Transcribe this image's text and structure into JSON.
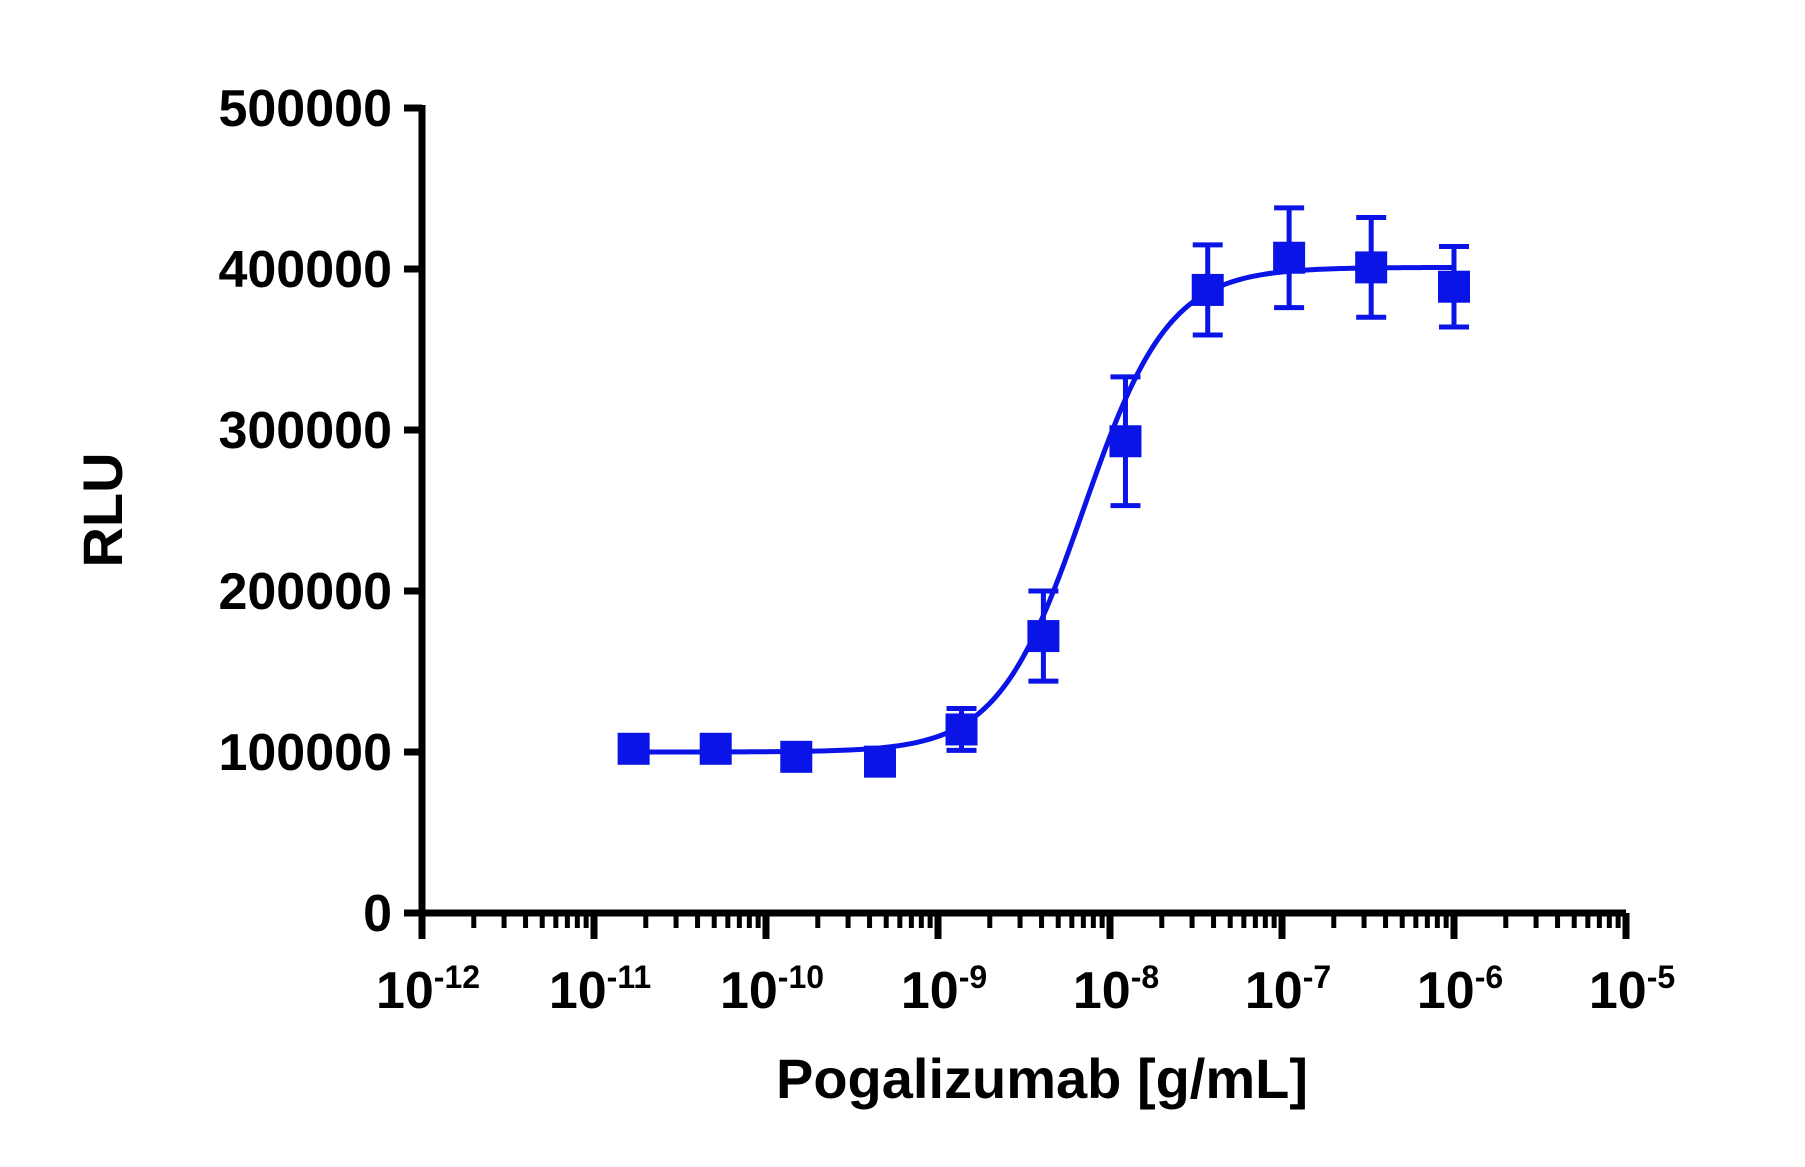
{
  "chart_data": {
    "type": "scatter",
    "xlabel": "Pogalizumab [g/mL]",
    "ylabel": "RLU",
    "x_scale": "log10",
    "xlim": [
      1e-12,
      1e-05
    ],
    "ylim": [
      0,
      500000
    ],
    "x_ticks": [
      {
        "base": "10",
        "exp": "-12",
        "value": 1e-12
      },
      {
        "base": "10",
        "exp": "-11",
        "value": 1e-11
      },
      {
        "base": "10",
        "exp": "-10",
        "value": 1e-10
      },
      {
        "base": "10",
        "exp": "-9",
        "value": 1e-09
      },
      {
        "base": "10",
        "exp": "-8",
        "value": 1e-08
      },
      {
        "base": "10",
        "exp": "-7",
        "value": 1e-07
      },
      {
        "base": "10",
        "exp": "-6",
        "value": 1e-06
      },
      {
        "base": "10",
        "exp": "-5",
        "value": 1e-05
      }
    ],
    "y_ticks": [
      "0",
      "100000",
      "200000",
      "300000",
      "400000",
      "500000"
    ],
    "grid": false,
    "legend": "none",
    "series": [
      {
        "marker": "square",
        "color": "#0a14e6",
        "points": [
          {
            "x": 1.7e-11,
            "y": 102000,
            "err": 3000
          },
          {
            "x": 5.1e-11,
            "y": 102000,
            "err": 3000
          },
          {
            "x": 1.5e-10,
            "y": 97000,
            "err": 7000
          },
          {
            "x": 4.6e-10,
            "y": 94000,
            "err": 6000
          },
          {
            "x": 1.37e-09,
            "y": 114000,
            "err": 13000
          },
          {
            "x": 4.1e-09,
            "y": 172000,
            "err": 28000
          },
          {
            "x": 1.23e-08,
            "y": 293000,
            "err": 40000
          },
          {
            "x": 3.7e-08,
            "y": 387000,
            "err": 28000
          },
          {
            "x": 1.1e-07,
            "y": 407000,
            "err": 31000
          },
          {
            "x": 3.3e-07,
            "y": 401000,
            "err": 31000
          },
          {
            "x": 1e-06,
            "y": 389000,
            "err": 25000
          }
        ],
        "fit": {
          "model": "four-parameter logistic",
          "bottom": 100000,
          "top": 401000,
          "ec50": 7e-09,
          "hill_slope": 1.75
        }
      }
    ]
  }
}
